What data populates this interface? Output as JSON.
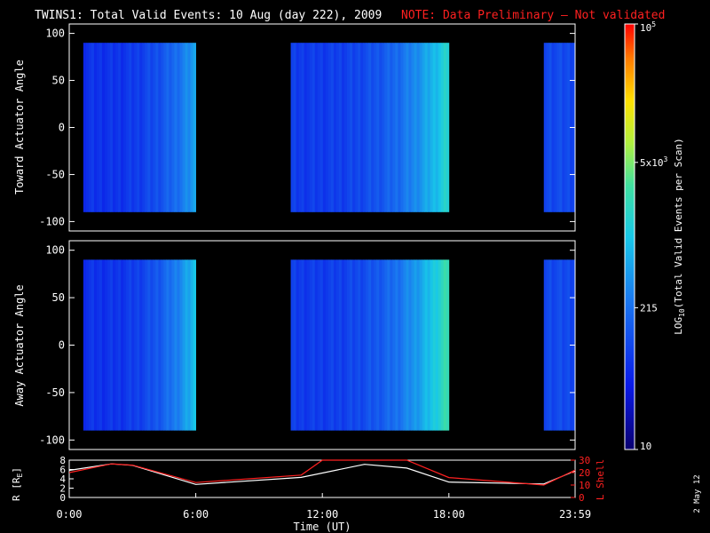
{
  "header": {
    "title": "TWINS1: Total Valid Events: 10 Aug (day 222), 2009",
    "note": "NOTE: Data Preliminary — Not validated",
    "title_color": "#ffffff",
    "note_color": "#ff2020"
  },
  "footer": {
    "xlabel": "Time (UT)",
    "date_stamp": "2 May 12"
  },
  "colors": {
    "background": "#000000",
    "axis": "#ffffff",
    "r_line": "#ffffff",
    "lshell_line": "#ff2020"
  },
  "colorbar": {
    "label_main": "LOG",
    "label_sub": "10",
    "label_rest": "(Total Valid Events per Scan)",
    "ticks": [
      {
        "value": 10,
        "label": "10"
      },
      {
        "value": 215,
        "label": "215"
      },
      {
        "value": 5000,
        "label": "5x10",
        "sup": "3"
      },
      {
        "value": 100000,
        "label": "10",
        "sup": "5"
      }
    ],
    "min": 10,
    "max": 100000,
    "scale": "log",
    "colormap": "rainbow"
  },
  "chart_data": [
    {
      "type": "heatmap",
      "panel": "toward",
      "ylabel": "Toward Actuator Angle",
      "xlim": [
        "0:00",
        "23:59"
      ],
      "ylim": [
        -110,
        110
      ],
      "yticks": [
        -100,
        -50,
        0,
        50,
        100
      ],
      "data_y_range": [
        -90,
        90
      ],
      "data_segments": [
        {
          "start": "0:40",
          "end": "6:00",
          "level_start": 0.2,
          "level_end": 0.42
        },
        {
          "start": "10:30",
          "end": "18:00",
          "level_start": 0.22,
          "level_end": 0.55
        },
        {
          "start": "22:30",
          "end": "23:59",
          "level_start": 0.25,
          "level_end": 0.25
        }
      ]
    },
    {
      "type": "heatmap",
      "panel": "away",
      "ylabel": "Away Actuator Angle",
      "xlim": [
        "0:00",
        "23:59"
      ],
      "ylim": [
        -110,
        110
      ],
      "yticks": [
        -100,
        -50,
        0,
        50,
        100
      ],
      "data_y_range": [
        -90,
        90
      ],
      "data_segments": [
        {
          "start": "0:40",
          "end": "6:00",
          "level_start": 0.2,
          "level_end": 0.48
        },
        {
          "start": "10:30",
          "end": "18:00",
          "level_start": 0.22,
          "level_end": 0.6
        },
        {
          "start": "22:30",
          "end": "23:59",
          "level_start": 0.25,
          "level_end": 0.25
        }
      ]
    },
    {
      "type": "line",
      "panel": "orbit",
      "ylabel": "R [R",
      "ylabel_sub": "E",
      "ylabel_end": "]",
      "y2label": "L Shell",
      "xlim": [
        "0:00",
        "23:59"
      ],
      "xticks": [
        "0:00",
        "6:00",
        "12:00",
        "18:00",
        "23:59"
      ],
      "ylim": [
        0,
        8
      ],
      "yticks": [
        0,
        2,
        4,
        6,
        8
      ],
      "y2lim": [
        0,
        30
      ],
      "y2ticks": [
        0,
        10,
        20,
        30
      ],
      "series": [
        {
          "axis": "left",
          "x": [
            "0:00",
            "2:00",
            "3:00",
            "6:00",
            "11:00",
            "14:00",
            "16:00",
            "18:00",
            "22:30",
            "23:59"
          ],
          "y": [
            5.8,
            7.2,
            6.9,
            2.8,
            4.3,
            7.1,
            6.3,
            3.3,
            2.9,
            5.7
          ]
        },
        {
          "axis": "right",
          "x": [
            "0:00",
            "2:00",
            "3:00",
            "6:00",
            "11:00",
            "12:00",
            "16:00",
            "18:00",
            "22:30",
            "23:59"
          ],
          "y": [
            20,
            27,
            26,
            12,
            18,
            34,
            34,
            16,
            10,
            22
          ]
        }
      ]
    }
  ]
}
